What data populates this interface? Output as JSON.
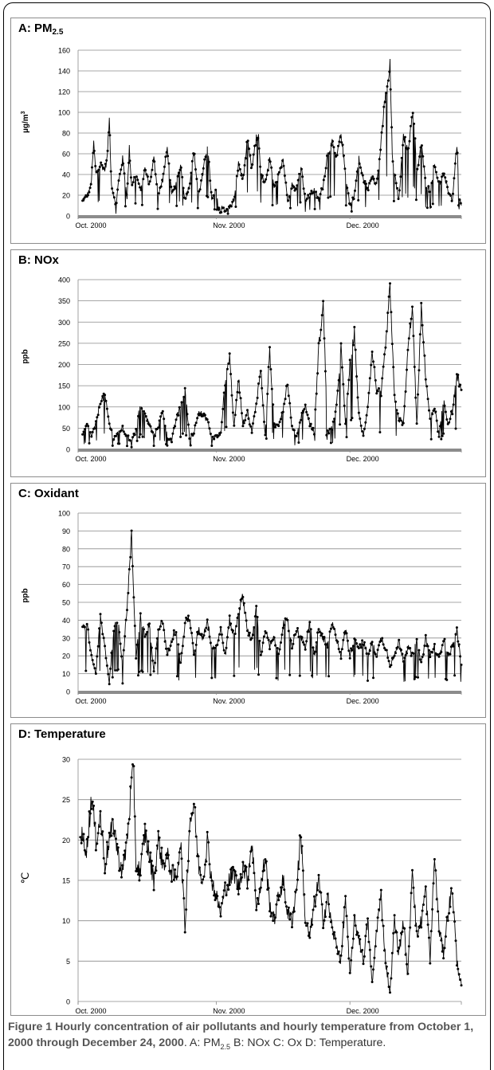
{
  "figure": {
    "caption_lead": "Figure 1 Hourly concentration of air pollutants and hourly temperature from October 1, 2000 through December 24, 2000",
    "caption_rest": ". A: PM",
    "caption_rest_sub": "2.5",
    "caption_tail": " B: NOx C: Ox D: Temperature."
  },
  "chart_data": [
    {
      "type": "line",
      "title": "A: PM",
      "title_sub": "2.5",
      "xlabel": "",
      "ylabel": "µg/m",
      "ylabel_sup": "3",
      "ylim": [
        0,
        160
      ],
      "yticks": [
        0,
        20,
        40,
        60,
        80,
        100,
        120,
        140,
        160
      ],
      "x_range_days": [
        0,
        86
      ],
      "xtick_labels": [
        "Oct. 2000",
        "Nov. 2000",
        "Dec. 2000"
      ],
      "xtick_days": [
        0,
        31,
        61
      ],
      "grid": true,
      "baseline": 0,
      "anchors": [
        [
          1,
          14
        ],
        [
          2,
          20
        ],
        [
          2.6,
          25
        ],
        [
          3,
          35
        ],
        [
          3.5,
          70
        ],
        [
          4,
          40
        ],
        [
          5,
          50
        ],
        [
          6,
          45
        ],
        [
          6.5,
          55
        ],
        [
          7,
          93
        ],
        [
          7.5,
          30
        ],
        [
          8,
          20
        ],
        [
          8.5,
          8
        ],
        [
          9,
          30
        ],
        [
          10,
          55
        ],
        [
          11,
          18
        ],
        [
          11.5,
          65
        ],
        [
          12,
          30
        ],
        [
          13,
          40
        ],
        [
          14,
          25
        ],
        [
          15,
          45
        ],
        [
          16,
          30
        ],
        [
          17,
          55
        ],
        [
          18,
          20
        ],
        [
          19,
          35
        ],
        [
          20,
          65
        ],
        [
          21,
          20
        ],
        [
          22,
          30
        ],
        [
          23,
          50
        ],
        [
          24,
          15
        ],
        [
          25,
          30
        ],
        [
          26,
          62
        ],
        [
          27,
          20
        ],
        [
          28,
          40
        ],
        [
          29,
          70
        ],
        [
          30,
          15
        ],
        [
          31,
          25
        ],
        [
          31.5,
          5
        ],
        [
          32,
          12
        ],
        [
          33,
          5
        ],
        [
          34,
          8
        ],
        [
          35,
          15
        ],
        [
          36,
          50
        ],
        [
          37,
          35
        ],
        [
          38,
          72
        ],
        [
          39,
          45
        ],
        [
          40,
          75
        ],
        [
          40.5,
          78
        ],
        [
          41,
          40
        ],
        [
          42,
          30
        ],
        [
          43,
          55
        ],
        [
          44,
          25
        ],
        [
          45,
          42
        ],
        [
          46,
          55
        ],
        [
          47,
          15
        ],
        [
          48,
          30
        ],
        [
          49,
          25
        ],
        [
          50,
          50
        ],
        [
          51,
          15
        ],
        [
          52,
          20
        ],
        [
          53,
          25
        ],
        [
          54,
          15
        ],
        [
          55,
          30
        ],
        [
          56,
          60
        ],
        [
          57,
          70
        ],
        [
          58,
          55
        ],
        [
          59,
          80
        ],
        [
          60,
          40
        ],
        [
          61,
          10
        ],
        [
          62,
          20
        ],
        [
          63,
          55
        ],
        [
          64,
          35
        ],
        [
          65,
          25
        ],
        [
          66,
          40
        ],
        [
          67,
          30
        ],
        [
          68,
          70
        ],
        [
          69,
          120
        ],
        [
          69.5,
          125
        ],
        [
          70,
          145
        ],
        [
          70.5,
          60
        ],
        [
          71,
          40
        ],
        [
          72,
          15
        ],
        [
          73,
          80
        ],
        [
          74,
          60
        ],
        [
          75,
          100
        ],
        [
          75.5,
          85
        ],
        [
          76,
          40
        ],
        [
          77,
          70
        ],
        [
          78,
          30
        ],
        [
          79,
          25
        ],
        [
          80,
          50
        ],
        [
          81,
          30
        ],
        [
          82,
          40
        ],
        [
          83,
          25
        ],
        [
          84,
          15
        ],
        [
          85,
          70
        ],
        [
          85.5,
          20
        ],
        [
          86,
          10
        ]
      ]
    },
    {
      "type": "line",
      "title": "B: NOx",
      "xlabel": "",
      "ylabel": "ppb",
      "ylim": [
        0,
        400
      ],
      "yticks": [
        0,
        50,
        100,
        150,
        200,
        250,
        300,
        350,
        400
      ],
      "x_range_days": [
        0,
        86
      ],
      "xtick_labels": [
        "Oct. 2000",
        "Nov. 2000",
        "Dec. 2000"
      ],
      "xtick_days": [
        0,
        31,
        61
      ],
      "grid": true,
      "baseline": 0,
      "anchors": [
        [
          1,
          30
        ],
        [
          2,
          60
        ],
        [
          3,
          30
        ],
        [
          4,
          60
        ],
        [
          5,
          115
        ],
        [
          6,
          125
        ],
        [
          7,
          60
        ],
        [
          8,
          25
        ],
        [
          9,
          40
        ],
        [
          10,
          50
        ],
        [
          11,
          30
        ],
        [
          12,
          20
        ],
        [
          13,
          45
        ],
        [
          14,
          110
        ],
        [
          15,
          80
        ],
        [
          16,
          60
        ],
        [
          17,
          30
        ],
        [
          18,
          55
        ],
        [
          19,
          90
        ],
        [
          20,
          30
        ],
        [
          21,
          20
        ],
        [
          22,
          70
        ],
        [
          23,
          100
        ],
        [
          24,
          140
        ],
        [
          25,
          30
        ],
        [
          26,
          40
        ],
        [
          27,
          90
        ],
        [
          28,
          80
        ],
        [
          29,
          70
        ],
        [
          30,
          25
        ],
        [
          31,
          30
        ],
        [
          32,
          35
        ],
        [
          33,
          160
        ],
        [
          34,
          220
        ],
        [
          35,
          50
        ],
        [
          36,
          170
        ],
        [
          37,
          60
        ],
        [
          38,
          90
        ],
        [
          39,
          40
        ],
        [
          40,
          110
        ],
        [
          41,
          190
        ],
        [
          42,
          30
        ],
        [
          43,
          235
        ],
        [
          44,
          55
        ],
        [
          45,
          60
        ],
        [
          46,
          95
        ],
        [
          47,
          160
        ],
        [
          48,
          50
        ],
        [
          49,
          30
        ],
        [
          50,
          75
        ],
        [
          51,
          100
        ],
        [
          52,
          60
        ],
        [
          53,
          40
        ],
        [
          54,
          240
        ],
        [
          55,
          340
        ],
        [
          56,
          40
        ],
        [
          57,
          50
        ],
        [
          58,
          100
        ],
        [
          59,
          240
        ],
        [
          60,
          60
        ],
        [
          61,
          200
        ],
        [
          62,
          275
        ],
        [
          63,
          80
        ],
        [
          64,
          30
        ],
        [
          65,
          100
        ],
        [
          66,
          230
        ],
        [
          67,
          140
        ],
        [
          68,
          130
        ],
        [
          69,
          240
        ],
        [
          70,
          380
        ],
        [
          71,
          120
        ],
        [
          72,
          70
        ],
        [
          73,
          60
        ],
        [
          74,
          230
        ],
        [
          75,
          340
        ],
        [
          76,
          55
        ],
        [
          77,
          330
        ],
        [
          78,
          170
        ],
        [
          79,
          70
        ],
        [
          80,
          100
        ],
        [
          81,
          30
        ],
        [
          82,
          120
        ],
        [
          83,
          60
        ],
        [
          84,
          90
        ],
        [
          85,
          175
        ],
        [
          86,
          140
        ]
      ]
    },
    {
      "type": "line",
      "title": "C: Oxidant",
      "xlabel": "",
      "ylabel": "ppb",
      "ylim": [
        0,
        100
      ],
      "yticks": [
        0,
        10,
        20,
        30,
        40,
        50,
        60,
        70,
        80,
        90,
        100
      ],
      "x_range_days": [
        0,
        86
      ],
      "xtick_labels": [
        "Oct. 2000",
        "Nov. 2000",
        "Dec. 2000"
      ],
      "xtick_days": [
        0,
        31,
        61
      ],
      "grid": true,
      "baseline": 0,
      "anchors": [
        [
          1,
          35
        ],
        [
          2,
          37
        ],
        [
          3,
          20
        ],
        [
          4,
          10
        ],
        [
          5,
          42
        ],
        [
          6,
          25
        ],
        [
          7,
          5
        ],
        [
          8,
          35
        ],
        [
          9,
          40
        ],
        [
          10,
          15
        ],
        [
          11,
          48
        ],
        [
          12,
          87
        ],
        [
          13,
          20
        ],
        [
          14,
          42
        ],
        [
          15,
          30
        ],
        [
          16,
          38
        ],
        [
          17,
          10
        ],
        [
          18,
          35
        ],
        [
          19,
          40
        ],
        [
          20,
          20
        ],
        [
          21,
          30
        ],
        [
          22,
          35
        ],
        [
          23,
          15
        ],
        [
          24,
          38
        ],
        [
          25,
          42
        ],
        [
          26,
          20
        ],
        [
          27,
          35
        ],
        [
          28,
          30
        ],
        [
          29,
          40
        ],
        [
          30,
          25
        ],
        [
          31,
          25
        ],
        [
          32,
          35
        ],
        [
          33,
          20
        ],
        [
          34,
          40
        ],
        [
          35,
          30
        ],
        [
          36,
          45
        ],
        [
          37,
          53
        ],
        [
          38,
          35
        ],
        [
          39,
          28
        ],
        [
          40,
          47
        ],
        [
          41,
          20
        ],
        [
          42,
          35
        ],
        [
          43,
          25
        ],
        [
          44,
          30
        ],
        [
          45,
          20
        ],
        [
          46,
          38
        ],
        [
          47,
          39
        ],
        [
          48,
          25
        ],
        [
          49,
          35
        ],
        [
          50,
          30
        ],
        [
          51,
          25
        ],
        [
          52,
          38
        ],
        [
          53,
          20
        ],
        [
          54,
          35
        ],
        [
          55,
          30
        ],
        [
          56,
          25
        ],
        [
          57,
          38
        ],
        [
          58,
          30
        ],
        [
          59,
          20
        ],
        [
          60,
          35
        ],
        [
          61,
          20
        ],
        [
          62,
          30
        ],
        [
          63,
          25
        ],
        [
          64,
          28
        ],
        [
          65,
          20
        ],
        [
          66,
          27
        ],
        [
          67,
          20
        ],
        [
          68,
          30
        ],
        [
          69,
          25
        ],
        [
          70,
          15
        ],
        [
          71,
          20
        ],
        [
          72,
          28
        ],
        [
          73,
          18
        ],
        [
          74,
          25
        ],
        [
          75,
          20
        ],
        [
          76,
          28
        ],
        [
          77,
          15
        ],
        [
          78,
          30
        ],
        [
          79,
          20
        ],
        [
          80,
          25
        ],
        [
          81,
          18
        ],
        [
          82,
          30
        ],
        [
          83,
          20
        ],
        [
          84,
          25
        ],
        [
          85,
          34
        ],
        [
          86,
          15
        ]
      ]
    },
    {
      "type": "line",
      "title": "D: Temperature",
      "xlabel": "",
      "ylabel": "℃",
      "ylim": [
        0,
        30
      ],
      "yticks": [
        0,
        5,
        10,
        15,
        20,
        25,
        30
      ],
      "x_range_days": [
        0,
        86
      ],
      "xtick_labels": [
        "Oct. 2000",
        "Nov. 2000",
        "Dec. 2000"
      ],
      "xtick_days": [
        0,
        31,
        61
      ],
      "grid": true,
      "baseline": null,
      "anchors": [
        [
          0.5,
          21
        ],
        [
          1,
          20
        ],
        [
          2,
          19
        ],
        [
          3,
          25.5
        ],
        [
          4,
          20
        ],
        [
          5,
          23
        ],
        [
          6,
          17
        ],
        [
          7,
          20
        ],
        [
          8,
          22
        ],
        [
          9,
          18
        ],
        [
          10,
          16
        ],
        [
          11,
          20
        ],
        [
          12,
          27
        ],
        [
          12.5,
          28
        ],
        [
          13,
          17
        ],
        [
          14,
          16
        ],
        [
          15,
          21
        ],
        [
          16,
          18
        ],
        [
          17,
          15
        ],
        [
          18,
          20
        ],
        [
          19,
          17
        ],
        [
          20,
          18
        ],
        [
          21,
          16
        ],
        [
          22,
          15
        ],
        [
          23,
          20
        ],
        [
          24,
          9
        ],
        [
          25,
          22
        ],
        [
          26,
          24.5
        ],
        [
          27,
          17
        ],
        [
          28,
          15
        ],
        [
          29,
          20
        ],
        [
          30,
          15
        ],
        [
          31,
          13
        ],
        [
          32,
          11
        ],
        [
          33,
          14
        ],
        [
          34,
          15
        ],
        [
          35,
          16
        ],
        [
          36,
          14
        ],
        [
          37,
          17
        ],
        [
          38,
          15
        ],
        [
          39,
          20
        ],
        [
          40,
          12
        ],
        [
          41,
          14
        ],
        [
          42,
          18
        ],
        [
          43,
          12
        ],
        [
          44,
          10
        ],
        [
          45,
          13
        ],
        [
          46,
          15
        ],
        [
          47,
          11
        ],
        [
          48,
          10
        ],
        [
          49,
          14
        ],
        [
          50,
          21
        ],
        [
          51,
          10
        ],
        [
          52,
          8
        ],
        [
          53,
          12
        ],
        [
          54,
          15
        ],
        [
          55,
          10
        ],
        [
          56,
          13
        ],
        [
          57,
          9
        ],
        [
          58,
          7
        ],
        [
          59,
          5
        ],
        [
          60,
          13
        ],
        [
          61,
          3
        ],
        [
          62,
          10
        ],
        [
          63,
          8
        ],
        [
          64,
          5
        ],
        [
          65,
          10
        ],
        [
          66,
          2
        ],
        [
          67,
          9
        ],
        [
          68,
          13
        ],
        [
          69,
          5
        ],
        [
          70,
          1
        ],
        [
          71,
          10
        ],
        [
          72,
          6
        ],
        [
          73,
          10
        ],
        [
          74,
          3
        ],
        [
          75,
          17
        ],
        [
          76,
          8
        ],
        [
          77,
          10
        ],
        [
          78,
          14
        ],
        [
          79,
          5
        ],
        [
          80,
          18
        ],
        [
          81,
          9
        ],
        [
          82,
          6
        ],
        [
          83,
          11
        ],
        [
          84,
          14
        ],
        [
          85,
          5
        ],
        [
          86,
          2
        ]
      ]
    }
  ]
}
